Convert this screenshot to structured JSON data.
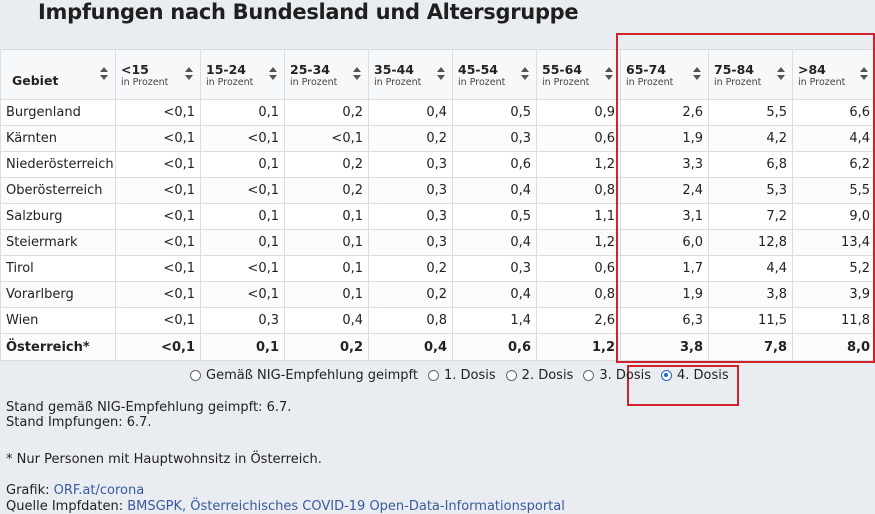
{
  "title": "Impfungen nach Bundesland und Altersgruppe",
  "table": {
    "region_header": "Gebiet",
    "columns": [
      {
        "label": "<15",
        "sub": "in Prozent"
      },
      {
        "label": "15-24",
        "sub": "in Prozent"
      },
      {
        "label": "25-34",
        "sub": "in Prozent"
      },
      {
        "label": "35-44",
        "sub": "in Prozent"
      },
      {
        "label": "45-54",
        "sub": "in Prozent"
      },
      {
        "label": "55-64",
        "sub": "in Prozent"
      },
      {
        "label": "65-74",
        "sub": "in Prozent"
      },
      {
        "label": "75-84",
        "sub": "in Prozent"
      },
      {
        "label": ">84",
        "sub": "in Prozent"
      }
    ],
    "rows": [
      {
        "region": "Burgenland",
        "values": [
          "<0,1",
          "0,1",
          "0,2",
          "0,4",
          "0,5",
          "0,9",
          "2,6",
          "5,5",
          "6,6"
        ]
      },
      {
        "region": "Kärnten",
        "values": [
          "<0,1",
          "<0,1",
          "<0,1",
          "0,2",
          "0,3",
          "0,6",
          "1,9",
          "4,2",
          "4,4"
        ]
      },
      {
        "region": "Niederösterreich",
        "values": [
          "<0,1",
          "0,1",
          "0,2",
          "0,3",
          "0,6",
          "1,2",
          "3,3",
          "6,8",
          "6,2"
        ]
      },
      {
        "region": "Oberösterreich",
        "values": [
          "<0,1",
          "<0,1",
          "0,2",
          "0,3",
          "0,4",
          "0,8",
          "2,4",
          "5,3",
          "5,5"
        ]
      },
      {
        "region": "Salzburg",
        "values": [
          "<0,1",
          "0,1",
          "0,1",
          "0,3",
          "0,5",
          "1,1",
          "3,1",
          "7,2",
          "9,0"
        ]
      },
      {
        "region": "Steiermark",
        "values": [
          "<0,1",
          "0,1",
          "0,1",
          "0,3",
          "0,4",
          "1,2",
          "6,0",
          "12,8",
          "13,4"
        ]
      },
      {
        "region": "Tirol",
        "values": [
          "<0,1",
          "<0,1",
          "0,1",
          "0,2",
          "0,3",
          "0,6",
          "1,7",
          "4,4",
          "5,2"
        ]
      },
      {
        "region": "Vorarlberg",
        "values": [
          "<0,1",
          "<0,1",
          "0,1",
          "0,2",
          "0,4",
          "0,8",
          "1,9",
          "3,8",
          "3,9"
        ]
      },
      {
        "region": "Wien",
        "values": [
          "<0,1",
          "0,3",
          "0,4",
          "0,8",
          "1,4",
          "2,6",
          "6,3",
          "11,5",
          "11,8"
        ]
      }
    ],
    "total": {
      "region": "Österreich*",
      "values": [
        "<0,1",
        "0,1",
        "0,2",
        "0,4",
        "0,6",
        "1,2",
        "3,8",
        "7,8",
        "8,0"
      ]
    }
  },
  "dose_options": [
    {
      "label": "Gemäß NIG-Empfehlung geimpft",
      "selected": false
    },
    {
      "label": "1. Dosis",
      "selected": false
    },
    {
      "label": "2. Dosis",
      "selected": false
    },
    {
      "label": "3. Dosis",
      "selected": false
    },
    {
      "label": "4. Dosis",
      "selected": true
    }
  ],
  "footer": {
    "stand_nig": "Stand gemäß NIG-Empfehlung geimpft: 6.7.",
    "stand_impfungen": "Stand Impfungen: 6.7.",
    "note": "* Nur Personen mit Hauptwohnsitz in Österreich.",
    "grafik_label": "Grafik: ",
    "grafik_link": "ORF.at/corona",
    "quelle_label": "Quelle Impfdaten: ",
    "quelle_link": "BMSGPK, Österreichisches COVID-19 Open-Data-Informationsportal"
  },
  "colors": {
    "highlight_box": "#d0232a",
    "selected_radio": "#1e63c8",
    "link": "#3a5a9a"
  }
}
